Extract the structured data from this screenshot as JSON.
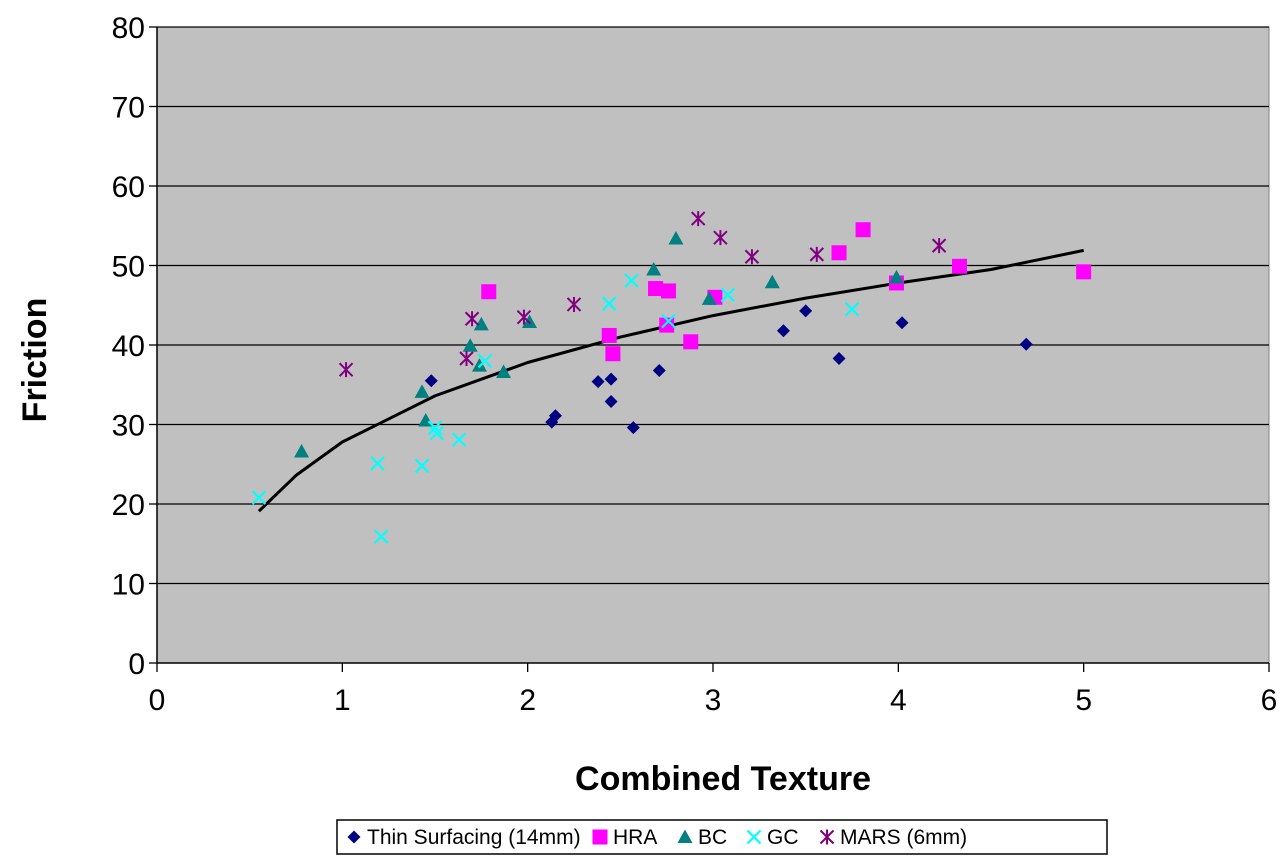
{
  "chart_data": {
    "type": "scatter",
    "title": "",
    "xlabel": "Combined Texture",
    "ylabel": "Friction",
    "xlim": [
      0,
      6
    ],
    "ylim": [
      0,
      80
    ],
    "x_ticks": [
      "0",
      "1",
      "2",
      "3",
      "4",
      "5",
      "6"
    ],
    "y_ticks": [
      "0",
      "10",
      "20",
      "30",
      "40",
      "50",
      "60",
      "70",
      "80"
    ],
    "grid": "horizontal",
    "plot_background": "#c0c0c0",
    "legend_position": "bottom",
    "series": [
      {
        "name": "Thin Surfacing (14mm)",
        "marker": "diamond",
        "color": "#000080",
        "points": [
          [
            1.48,
            35.5
          ],
          [
            2.13,
            30.3
          ],
          [
            2.15,
            31.1
          ],
          [
            2.38,
            35.4
          ],
          [
            2.45,
            35.7
          ],
          [
            2.45,
            32.9
          ],
          [
            2.57,
            29.6
          ],
          [
            2.71,
            36.8
          ],
          [
            3.38,
            41.8
          ],
          [
            3.5,
            44.3
          ],
          [
            3.68,
            38.3
          ],
          [
            4.02,
            42.8
          ],
          [
            4.69,
            40.1
          ]
        ]
      },
      {
        "name": "HRA",
        "marker": "square",
        "color": "#ff00ff",
        "points": [
          [
            1.79,
            46.7
          ],
          [
            2.44,
            41.2
          ],
          [
            2.46,
            38.9
          ],
          [
            2.69,
            47.1
          ],
          [
            2.75,
            42.5
          ],
          [
            2.76,
            46.8
          ],
          [
            2.88,
            40.4
          ],
          [
            3.01,
            46
          ],
          [
            3.68,
            51.6
          ],
          [
            3.81,
            54.5
          ],
          [
            3.99,
            47.8
          ],
          [
            4.33,
            49.9
          ],
          [
            5,
            49.2
          ]
        ]
      },
      {
        "name": "BC",
        "marker": "triangle",
        "color": "#008080",
        "points": [
          [
            0.78,
            26.6
          ],
          [
            1.43,
            34.1
          ],
          [
            1.45,
            30.5
          ],
          [
            1.69,
            39.9
          ],
          [
            1.74,
            37.4
          ],
          [
            1.75,
            42.6
          ],
          [
            1.87,
            36.6
          ],
          [
            2.01,
            42.9
          ],
          [
            2.68,
            49.5
          ],
          [
            2.8,
            53.4
          ],
          [
            2.98,
            45.8
          ],
          [
            3.32,
            47.9
          ],
          [
            3.99,
            48.5
          ]
        ]
      },
      {
        "name": "GC",
        "marker": "x",
        "color": "#00ffff",
        "points": [
          [
            0.55,
            20.8
          ],
          [
            1.19,
            25.1
          ],
          [
            1.21,
            15.9
          ],
          [
            1.43,
            24.8
          ],
          [
            1.5,
            29.6
          ],
          [
            1.51,
            28.9
          ],
          [
            1.63,
            28.1
          ],
          [
            1.77,
            38
          ],
          [
            2.44,
            45.2
          ],
          [
            2.56,
            48.1
          ],
          [
            2.76,
            43
          ],
          [
            3.08,
            46.3
          ],
          [
            3.75,
            44.5
          ]
        ]
      },
      {
        "name": "MARS (6mm)",
        "marker": "star",
        "color": "#800080",
        "points": [
          [
            1.02,
            36.9
          ],
          [
            1.67,
            38.3
          ],
          [
            1.7,
            43.3
          ],
          [
            1.98,
            43.5
          ],
          [
            2.25,
            45.1
          ],
          [
            2.92,
            55.9
          ],
          [
            3.04,
            53.5
          ],
          [
            3.21,
            51.1
          ],
          [
            3.56,
            51.4
          ],
          [
            4.22,
            52.5
          ]
        ]
      }
    ],
    "trendline": {
      "type": "logarithmic",
      "color": "#000000",
      "x_range": [
        0.55,
        5
      ],
      "points": [
        [
          0.55,
          19.1
        ],
        [
          0.75,
          23.6
        ],
        [
          1,
          27.8
        ],
        [
          1.5,
          33.6
        ],
        [
          2,
          37.8
        ],
        [
          2.5,
          41
        ],
        [
          3,
          43.7
        ],
        [
          3.5,
          45.9
        ],
        [
          4,
          47.8
        ],
        [
          4.5,
          49.5
        ],
        [
          5,
          51.9
        ]
      ]
    }
  }
}
